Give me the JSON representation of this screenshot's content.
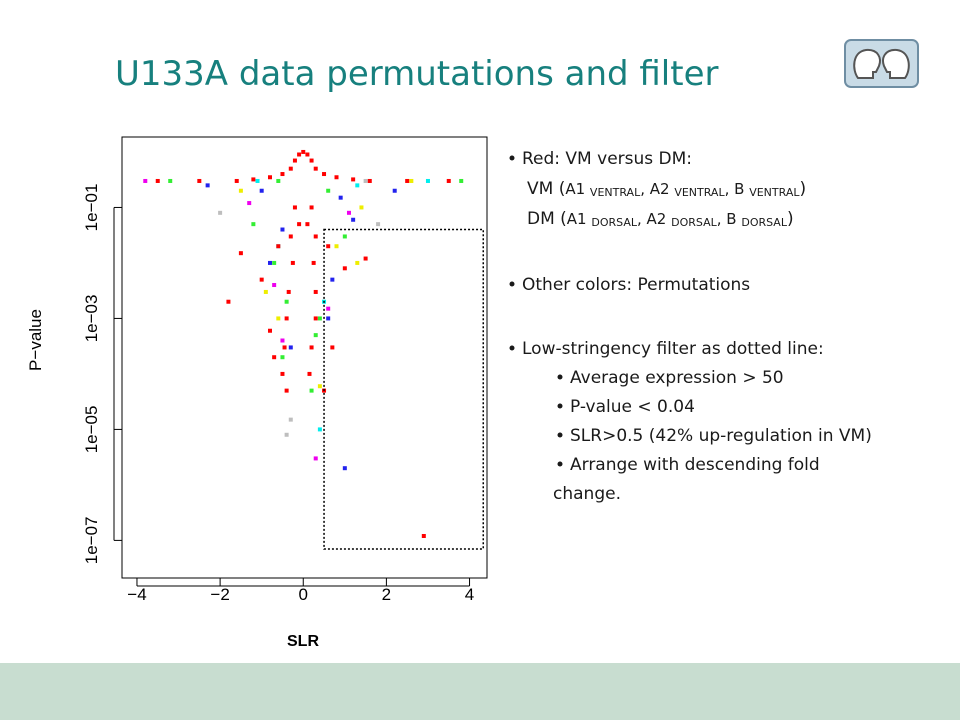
{
  "title": "U133A data permutations and filter",
  "chart_data": {
    "type": "scatter",
    "xlabel": "SLR",
    "ylabel": "P−value",
    "log_y": true,
    "xlim": [
      -4.36,
      4.42
    ],
    "ylim": [
      2.1e-08,
      1.86
    ],
    "xticks": [
      {
        "value": -4,
        "label": "−4"
      },
      {
        "value": -2,
        "label": "−2"
      },
      0,
      2,
      4
    ],
    "yticks": [
      {
        "value": 0.1,
        "label": "1e−01"
      },
      {
        "value": 0.001,
        "label": "1e−03"
      },
      {
        "value": 1e-05,
        "label": "1e−05"
      },
      {
        "value": 1e-07,
        "label": "1e−07"
      }
    ],
    "filter": {
      "xlim": [
        0.5,
        4.33
      ],
      "ylim": [
        7e-08,
        0.04
      ]
    },
    "series": [
      {
        "color": "#33ee33",
        "x": [
          -0.6,
          0.6,
          -1.2,
          1.0,
          -0.4,
          0.4,
          -0.5,
          0.3,
          -3.2,
          3.8,
          0.2,
          -0.7
        ],
        "y": [
          0.3,
          0.2,
          0.05,
          0.03,
          0.002,
          0.001,
          0.0002,
          0.0005,
          0.3,
          0.3,
          5e-05,
          0.01
        ]
      },
      {
        "color": "#2222ee",
        "x": [
          -1.0,
          0.9,
          -0.8,
          0.7,
          -0.3,
          0.6,
          1.0,
          -2.3,
          2.2,
          -0.5,
          1.2
        ],
        "y": [
          0.2,
          0.15,
          0.01,
          0.005,
          0.0003,
          0.001,
          2e-06,
          0.25,
          0.2,
          0.04,
          0.06
        ]
      },
      {
        "color": "#eeee00",
        "x": [
          -1.5,
          1.4,
          -0.9,
          0.8,
          1.3,
          -0.6,
          0.4,
          2.6
        ],
        "y": [
          0.2,
          0.1,
          0.003,
          0.02,
          0.01,
          0.001,
          6e-05,
          0.3
        ]
      },
      {
        "color": "#ee00ee",
        "x": [
          -1.3,
          1.1,
          -0.7,
          0.6,
          0.3,
          -0.5,
          -3.8
        ],
        "y": [
          0.12,
          0.08,
          0.004,
          0.0015,
          3e-06,
          0.0004,
          0.3
        ]
      },
      {
        "color": "#00eeee",
        "x": [
          -1.1,
          1.3,
          -0.6,
          0.5,
          0.4,
          3.0
        ],
        "y": [
          0.3,
          0.25,
          0.02,
          0.002,
          1e-05,
          0.3
        ]
      },
      {
        "color": "#bebebe",
        "x": [
          -2.0,
          1.8,
          -0.4,
          -0.3,
          1.5
        ],
        "y": [
          0.08,
          0.05,
          8e-06,
          1.5e-05,
          0.3
        ]
      },
      {
        "color": "#ff0000",
        "x": [
          0,
          -0.1,
          0.1,
          -0.2,
          0.2,
          -0.3,
          0.3,
          -0.5,
          0.5,
          -0.8,
          0.8,
          -1.2,
          1.2,
          -1.6,
          1.6,
          -2.5,
          2.5,
          -3.5,
          3.5,
          -0.2,
          0.2,
          -0.3,
          0.3,
          -0.25,
          0.25,
          -0.35,
          0.3,
          -0.4,
          0.3,
          -0.45,
          0.2,
          -0.5,
          -0.4,
          0.15,
          -0.6,
          0.6,
          -1.0,
          1.0,
          -1.5,
          1.5,
          -1.8,
          -0.8,
          0.7,
          0.5,
          2.9,
          -0.7,
          0.1,
          -0.1
        ],
        "y": [
          1,
          0.9,
          0.9,
          0.7,
          0.7,
          0.5,
          0.5,
          0.4,
          0.4,
          0.35,
          0.35,
          0.32,
          0.32,
          0.3,
          0.3,
          0.3,
          0.3,
          0.3,
          0.3,
          0.1,
          0.1,
          0.03,
          0.03,
          0.01,
          0.01,
          0.003,
          0.003,
          0.001,
          0.001,
          0.0003,
          0.0003,
          0.0001,
          5e-05,
          0.0001,
          0.02,
          0.02,
          0.005,
          0.008,
          0.015,
          0.012,
          0.002,
          0.0006,
          0.0003,
          5e-05,
          1.2e-07,
          0.0002,
          0.05,
          0.05
        ]
      }
    ]
  },
  "bullets": [
    {
      "text": "Red: VM versus DM:",
      "lines": [
        [
          {
            "text": "VM ("
          },
          {
            "text": "A1 ",
            "small": true
          },
          {
            "text": "VENTRAL",
            "sub": true
          },
          {
            "text": ", A2 ",
            "small": true
          },
          {
            "text": "VENTRAL",
            "sub": true
          },
          {
            "text": ", B ",
            "small": true
          },
          {
            "text": "VENTRAL",
            "sub": true
          },
          {
            "text": ")"
          }
        ],
        [
          {
            "text": "DM ("
          },
          {
            "text": "A1 ",
            "small": true
          },
          {
            "text": "DORSAL",
            "sub": true
          },
          {
            "text": ", A2 ",
            "small": true
          },
          {
            "text": "DORSAL",
            "sub": true
          },
          {
            "text": ", B ",
            "small": true
          },
          {
            "text": "DORSAL",
            "sub": true
          },
          {
            "text": ")"
          }
        ]
      ]
    },
    {
      "text": "Other colors: Permutations"
    },
    {
      "text": "Low-stringency filter as dotted line:",
      "items": [
        [
          "Average expression > 50"
        ],
        [
          "P-value < 0.04"
        ],
        [
          "SLR>0.5 (42% up-regulation in VM)"
        ],
        [
          "Arrange with descending fold",
          "change."
        ]
      ]
    }
  ]
}
